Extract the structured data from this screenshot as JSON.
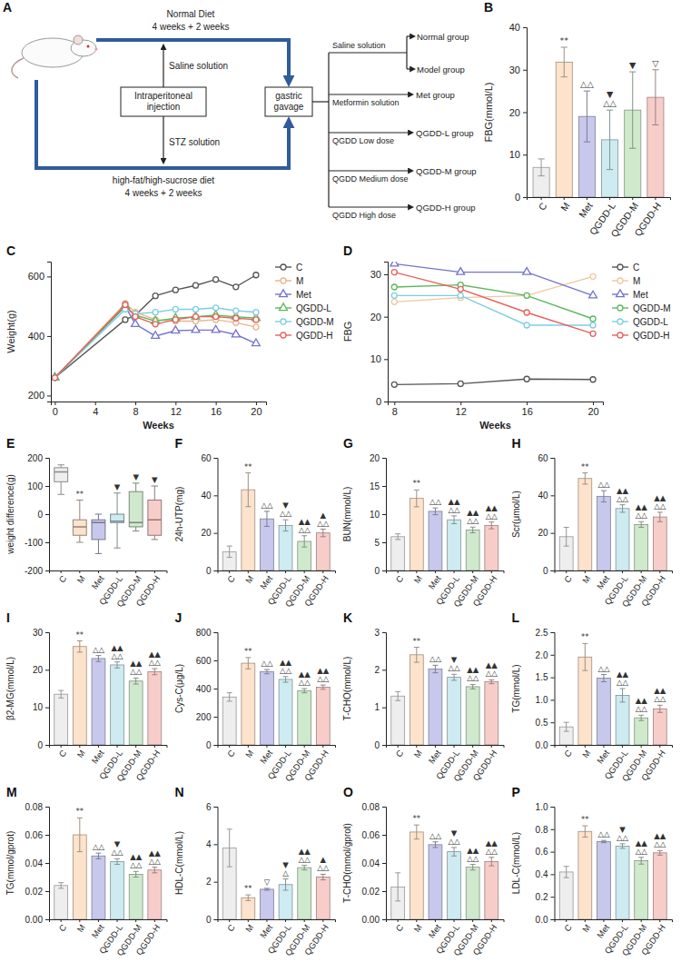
{
  "diagram": {
    "panel": "A",
    "normal_arm": {
      "diet": "Normal Diet",
      "duration": "4 weeks + 2 weeks",
      "injection": "Saline solution"
    },
    "model_arm": {
      "diet": "high-fat/high-sucrose diet",
      "duration": "4 weeks + 2 weeks",
      "injection": "STZ solution"
    },
    "injection": "Intraperitoneal injection",
    "gavage": "gastric gavage",
    "treatments": [
      {
        "treatment": "Saline solution",
        "groups": [
          "Normal group",
          "Model group"
        ]
      },
      {
        "treatment": "Metformin solution",
        "groups": [
          "Met group"
        ]
      },
      {
        "treatment": "QGDD Low dose",
        "groups": [
          "QGDD-L group"
        ]
      },
      {
        "treatment": "QGDD Medium dose",
        "groups": [
          "QGDD-M group"
        ]
      },
      {
        "treatment": "QGDD High dose",
        "groups": [
          "QGDD-H group"
        ]
      }
    ]
  },
  "chart_data": [
    {
      "panel": "B",
      "type": "bar",
      "y_label": "FBG(mmol/L)",
      "categories": [
        "C",
        "M",
        "Met",
        "QGDD-L",
        "QGDD-M",
        "QGDD-H"
      ],
      "values": [
        7,
        31.8,
        19,
        13.5,
        20.5,
        23.5
      ],
      "errors": [
        2,
        3.5,
        6,
        7,
        9,
        6.5
      ],
      "colors": [
        "#eeeeee",
        "#fde3cc",
        "#c8c8ec",
        "#cdebf0",
        "#cfe9cc",
        "#f7cdca"
      ],
      "ylim": [
        0,
        40
      ],
      "yticks": [
        0,
        10,
        20,
        30,
        40
      ],
      "annotations": [
        null,
        [
          "**"
        ],
        [
          "△△"
        ],
        [
          "▼",
          "△△"
        ],
        [
          "▼"
        ],
        [
          "▽"
        ]
      ]
    },
    {
      "panel": "C",
      "type": "line",
      "x_label": "Weeks",
      "y_label": "Weight(g)",
      "x": [
        0,
        7,
        8,
        10,
        12,
        14,
        16,
        18,
        20
      ],
      "series": [
        {
          "name": "C",
          "color": "#555555",
          "marker": "circle",
          "values": [
            260,
            455,
            470,
            535,
            555,
            570,
            590,
            565,
            605
          ]
        },
        {
          "name": "M",
          "color": "#eab488",
          "marker": "circle",
          "values": [
            260,
            510,
            480,
            455,
            450,
            450,
            455,
            445,
            430
          ]
        },
        {
          "name": "Met",
          "color": "#7373cf",
          "marker": "triangle",
          "values": [
            260,
            500,
            440,
            400,
            418,
            420,
            420,
            405,
            375
          ]
        },
        {
          "name": "QGDD-L",
          "color": "#5cb85c",
          "marker": "triangle",
          "values": [
            260,
            500,
            470,
            450,
            460,
            465,
            470,
            465,
            460
          ]
        },
        {
          "name": "QGDD-M",
          "color": "#7fcde4",
          "marker": "circle",
          "values": [
            260,
            490,
            475,
            480,
            490,
            490,
            495,
            485,
            480
          ]
        },
        {
          "name": "QGDD-H",
          "color": "#e5625c",
          "marker": "circle",
          "values": [
            260,
            505,
            465,
            440,
            455,
            465,
            465,
            460,
            455
          ]
        }
      ],
      "xlim": [
        -0.4,
        21
      ],
      "xticks": [
        0,
        4,
        8,
        12,
        16,
        20
      ],
      "ylim": [
        180,
        650
      ],
      "yticks": [
        200,
        400,
        600
      ],
      "legend": "right"
    },
    {
      "panel": "D",
      "type": "line",
      "x_label": "Weeks",
      "y_label": "FBG",
      "x": [
        8,
        12,
        16,
        20
      ],
      "series": [
        {
          "name": "C",
          "color": "#555555",
          "marker": "circle",
          "values": [
            4,
            4.2,
            5.3,
            5.2
          ]
        },
        {
          "name": "M",
          "color": "#eec9a0",
          "marker": "circle",
          "values": [
            23.5,
            24.5,
            25,
            29.5
          ]
        },
        {
          "name": "Met",
          "color": "#7373cf",
          "marker": "triangle",
          "values": [
            32.5,
            30.5,
            30.5,
            25
          ]
        },
        {
          "name": "QGDD-M",
          "color": "#5cb85c",
          "marker": "circle",
          "values": [
            27,
            27.5,
            25,
            19.5
          ]
        },
        {
          "name": "QGDD-L",
          "color": "#7fcde4",
          "marker": "circle",
          "values": [
            25,
            25,
            18,
            18
          ]
        },
        {
          "name": "QGDD-H",
          "color": "#e5625c",
          "marker": "circle",
          "values": [
            30.5,
            26.5,
            21,
            16
          ]
        }
      ],
      "xlim": [
        7.6,
        20.6
      ],
      "xticks": [
        8,
        12,
        16,
        20
      ],
      "ylim": [
        0,
        33
      ],
      "yticks": [
        0,
        10,
        20,
        30
      ],
      "legend": "right"
    },
    {
      "panel": "E",
      "type": "box",
      "y_label": "weight difference(g)",
      "categories": [
        "C",
        "M",
        "Met",
        "QGDD-L",
        "QGDD-M",
        "QGDD-H"
      ],
      "min": [
        70,
        -100,
        -140,
        -120,
        -60,
        -90
      ],
      "q1": [
        115,
        -75,
        -90,
        -30,
        -45,
        -75
      ],
      "median": [
        150,
        -45,
        -30,
        -25,
        -30,
        -20
      ],
      "q3": [
        165,
        -20,
        -20,
        0,
        80,
        50
      ],
      "max": [
        175,
        50,
        0,
        75,
        110,
        100
      ],
      "colors": [
        "#eeeeee",
        "#fde3cc",
        "#c8c8ec",
        "#cdebf0",
        "#cfe9cc",
        "#f7cdca"
      ],
      "ylim": [
        -200,
        200
      ],
      "yticks": [
        -200,
        -100,
        0,
        100,
        200
      ],
      "annotations": [
        null,
        [
          "**"
        ],
        null,
        [
          "▼"
        ],
        [
          "▼"
        ],
        [
          "▼"
        ]
      ]
    },
    {
      "panel": "F",
      "type": "bar",
      "y_label": "24h-UTP(mg)",
      "categories": [
        "C",
        "M",
        "Met",
        "QGDD-L",
        "QGDD-M",
        "QGDD-H"
      ],
      "values": [
        10,
        43,
        27.5,
        24,
        15.5,
        20
      ],
      "errors": [
        3,
        9,
        4,
        3,
        3,
        2
      ],
      "colors": [
        "#eeeeee",
        "#fde3cc",
        "#c8c8ec",
        "#cdebf0",
        "#cfe9cc",
        "#f7cdca"
      ],
      "ylim": [
        0,
        60
      ],
      "yticks": [
        0,
        20,
        40,
        60
      ],
      "annotations": [
        null,
        [
          "**"
        ],
        [
          "△△"
        ],
        [
          "▼",
          "△△"
        ],
        [
          "▲▲",
          "△△"
        ],
        [
          "▲",
          "△△"
        ]
      ]
    },
    {
      "panel": "G",
      "type": "bar",
      "y_label": "BUN(mmol/L)",
      "categories": [
        "C",
        "M",
        "Met",
        "QGDD-L",
        "QGDD-M",
        "QGDD-H"
      ],
      "values": [
        6,
        12.8,
        10.5,
        9,
        7.2,
        8
      ],
      "errors": [
        0.5,
        1.5,
        0.6,
        0.7,
        0.5,
        0.6
      ],
      "colors": [
        "#eeeeee",
        "#fde3cc",
        "#c8c8ec",
        "#cdebf0",
        "#cfe9cc",
        "#f7cdca"
      ],
      "ylim": [
        0,
        20
      ],
      "yticks": [
        0,
        5,
        10,
        15,
        20
      ],
      "annotations": [
        null,
        [
          "**"
        ],
        [
          "△△"
        ],
        [
          "▲▲",
          "△△"
        ],
        [
          "▲▲",
          "△△"
        ],
        [
          "▲▲",
          "△△"
        ]
      ]
    },
    {
      "panel": "H",
      "type": "bar",
      "y_label": "Scr(μmol/L)",
      "categories": [
        "C",
        "M",
        "Met",
        "QGDD-L",
        "QGDD-M",
        "QGDD-H"
      ],
      "values": [
        18,
        49,
        39.5,
        33,
        24.5,
        28.5
      ],
      "errors": [
        5,
        3,
        3,
        2,
        1.5,
        2.5
      ],
      "colors": [
        "#eeeeee",
        "#fde3cc",
        "#c8c8ec",
        "#cdebf0",
        "#cfe9cc",
        "#f7cdca"
      ],
      "ylim": [
        0,
        60
      ],
      "yticks": [
        0,
        20,
        40,
        60
      ],
      "annotations": [
        null,
        [
          "**"
        ],
        [
          "△△"
        ],
        [
          "▲▲",
          "△△"
        ],
        [
          "▲▲",
          "△△"
        ],
        [
          "▲▲",
          "△△"
        ]
      ]
    },
    {
      "panel": "I",
      "type": "bar",
      "y_label": "β2-MG(mmol/L)",
      "categories": [
        "C",
        "M",
        "Met",
        "QGDD-L",
        "QGDD-M",
        "QGDD-H"
      ],
      "values": [
        13.5,
        26.2,
        23,
        21.3,
        17,
        19.5
      ],
      "errors": [
        1,
        1.5,
        0.8,
        0.8,
        0.8,
        0.8
      ],
      "colors": [
        "#eeeeee",
        "#fde3cc",
        "#c8c8ec",
        "#cdebf0",
        "#cfe9cc",
        "#f7cdca"
      ],
      "ylim": [
        0,
        30
      ],
      "yticks": [
        0,
        10,
        20,
        30
      ],
      "annotations": [
        null,
        [
          "**"
        ],
        [
          "△△"
        ],
        [
          "▲▲",
          "△△"
        ],
        [
          "▲▲",
          "△△"
        ],
        [
          "▲▲",
          "△△"
        ]
      ]
    },
    {
      "panel": "J",
      "type": "bar",
      "y_label": "Cys-C(μg/L)",
      "categories": [
        "C",
        "M",
        "Met",
        "QGDD-L",
        "QGDD-M",
        "QGDD-H"
      ],
      "values": [
        340,
        580,
        520,
        465,
        385,
        410
      ],
      "errors": [
        30,
        40,
        15,
        20,
        15,
        15
      ],
      "colors": [
        "#eeeeee",
        "#fde3cc",
        "#c8c8ec",
        "#cdebf0",
        "#cfe9cc",
        "#f7cdca"
      ],
      "ylim": [
        0,
        800
      ],
      "yticks": [
        0,
        200,
        400,
        600,
        800
      ],
      "annotations": [
        null,
        [
          "**"
        ],
        [
          "△△"
        ],
        [
          "▲▲",
          "△△"
        ],
        [
          "▲▲",
          "△△"
        ],
        [
          "▲▲",
          "△△"
        ]
      ]
    },
    {
      "panel": "K",
      "type": "bar",
      "y_label": "T-CHO(mmol/L)",
      "categories": [
        "C",
        "M",
        "Met",
        "QGDD-L",
        "QGDD-M",
        "QGDD-H"
      ],
      "values": [
        1.3,
        2.4,
        2.02,
        1.8,
        1.55,
        1.68
      ],
      "errors": [
        0.12,
        0.2,
        0.1,
        0.08,
        0.06,
        0.05
      ],
      "colors": [
        "#eeeeee",
        "#fde3cc",
        "#c8c8ec",
        "#cdebf0",
        "#cfe9cc",
        "#f7cdca"
      ],
      "ylim": [
        0,
        3
      ],
      "yticks": [
        0,
        1,
        2,
        3
      ],
      "annotations": [
        null,
        [
          "**"
        ],
        [
          "△△"
        ],
        [
          "▼",
          "△△"
        ],
        [
          "▲▲",
          "△△"
        ],
        [
          "▲▲",
          "△△"
        ]
      ]
    },
    {
      "panel": "L",
      "type": "bar",
      "y_label": "TG(mmol/L)",
      "categories": [
        "C",
        "M",
        "Met",
        "QGDD-L",
        "QGDD-M",
        "QGDD-H"
      ],
      "values": [
        0.4,
        1.95,
        1.48,
        1.1,
        0.6,
        0.8
      ],
      "errors": [
        0.1,
        0.3,
        0.08,
        0.15,
        0.06,
        0.08
      ],
      "colors": [
        "#eeeeee",
        "#fde3cc",
        "#c8c8ec",
        "#cdebf0",
        "#cfe9cc",
        "#f7cdca"
      ],
      "ylim": [
        0,
        2.5
      ],
      "yticks": [
        {
          "value": 0,
          "label": "0.0"
        },
        0.5,
        {
          "value": 1,
          "label": "1.0"
        },
        1.5,
        {
          "value": 2,
          "label": "2.0"
        },
        2.5
      ],
      "annotations": [
        null,
        [
          "**"
        ],
        [
          "△△"
        ],
        [
          "▲▲",
          "△△"
        ],
        [
          "▲▲",
          "△△"
        ],
        [
          "▲▲",
          "△△"
        ]
      ]
    },
    {
      "panel": "M",
      "type": "bar",
      "y_label": "TG(mmol/gprot)",
      "categories": [
        "C",
        "M",
        "Met",
        "QGDD-L",
        "QGDD-M",
        "QGDD-H"
      ],
      "values": [
        0.024,
        0.06,
        0.045,
        0.041,
        0.032,
        0.035
      ],
      "errors": [
        0.002,
        0.012,
        0.002,
        0.002,
        0.002,
        0.002
      ],
      "colors": [
        "#eeeeee",
        "#fde3cc",
        "#c8c8ec",
        "#cdebf0",
        "#cfe9cc",
        "#f7cdca"
      ],
      "ylim": [
        0,
        0.08
      ],
      "yticks": [
        {
          "value": 0,
          "label": "0.00"
        },
        0.02,
        0.04,
        0.06,
        0.08
      ],
      "annotations": [
        null,
        [
          "**"
        ],
        [
          "△△"
        ],
        [
          "▼",
          "△△"
        ],
        [
          "▲▲",
          "△△"
        ],
        [
          "▲▲",
          "△△"
        ]
      ]
    },
    {
      "panel": "N",
      "type": "bar",
      "y_label": "HDL-C(mmol/L)",
      "categories": [
        "C",
        "M",
        "Met",
        "QGDD-L",
        "QGDD-M",
        "QGDD-H"
      ],
      "values": [
        3.8,
        1.15,
        1.6,
        1.85,
        2.75,
        2.25
      ],
      "errors": [
        1,
        0.15,
        0.05,
        0.3,
        0.12,
        0.15
      ],
      "colors": [
        "#eeeeee",
        "#fde3cc",
        "#c8c8ec",
        "#cdebf0",
        "#cfe9cc",
        "#f7cdca"
      ],
      "ylim": [
        0,
        6
      ],
      "yticks": [
        0,
        2,
        4,
        6
      ],
      "annotations": [
        null,
        [
          "**"
        ],
        [
          "▽"
        ],
        [
          "▼",
          "△"
        ],
        [
          "▲▲",
          "△△"
        ],
        [
          "▲",
          "△△"
        ]
      ]
    },
    {
      "panel": "O",
      "type": "bar",
      "y_label": "T-CHO(mmol/gprot)",
      "categories": [
        "C",
        "M",
        "Met",
        "QGDD-L",
        "QGDD-M",
        "QGDD-H"
      ],
      "values": [
        0.023,
        0.062,
        0.053,
        0.048,
        0.037,
        0.041
      ],
      "errors": [
        0.01,
        0.005,
        0.002,
        0.003,
        0.002,
        0.003
      ],
      "colors": [
        "#eeeeee",
        "#fde3cc",
        "#c8c8ec",
        "#cdebf0",
        "#cfe9cc",
        "#f7cdca"
      ],
      "ylim": [
        0,
        0.08
      ],
      "yticks": [
        {
          "value": 0,
          "label": "0.00"
        },
        0.02,
        0.04,
        0.06,
        0.08
      ],
      "annotations": [
        null,
        [
          "**"
        ],
        [
          "△△"
        ],
        [
          "▼",
          "△△"
        ],
        [
          "▲▲",
          "△△"
        ],
        [
          "▲▲",
          "△△"
        ]
      ]
    },
    {
      "panel": "P",
      "type": "bar",
      "y_label": "LDL-C(mmol/L)",
      "categories": [
        "C",
        "M",
        "Met",
        "QGDD-L",
        "QGDD-M",
        "QGDD-H"
      ],
      "values": [
        0.42,
        0.78,
        0.69,
        0.65,
        0.52,
        0.59
      ],
      "errors": [
        0.05,
        0.05,
        0.01,
        0.02,
        0.03,
        0.02
      ],
      "colors": [
        "#eeeeee",
        "#fde3cc",
        "#c8c8ec",
        "#cdebf0",
        "#cfe9cc",
        "#f7cdca"
      ],
      "ylim": [
        0,
        1
      ],
      "yticks": [
        {
          "value": 0,
          "label": "0.0"
        },
        0.2,
        0.4,
        0.6,
        0.8,
        {
          "value": 1,
          "label": "1.0"
        }
      ],
      "annotations": [
        null,
        [
          "**"
        ],
        [
          "△△"
        ],
        [
          "▼",
          "△△"
        ],
        [
          "▲▲",
          "△△"
        ],
        [
          "▲▲",
          "△△"
        ]
      ]
    }
  ]
}
